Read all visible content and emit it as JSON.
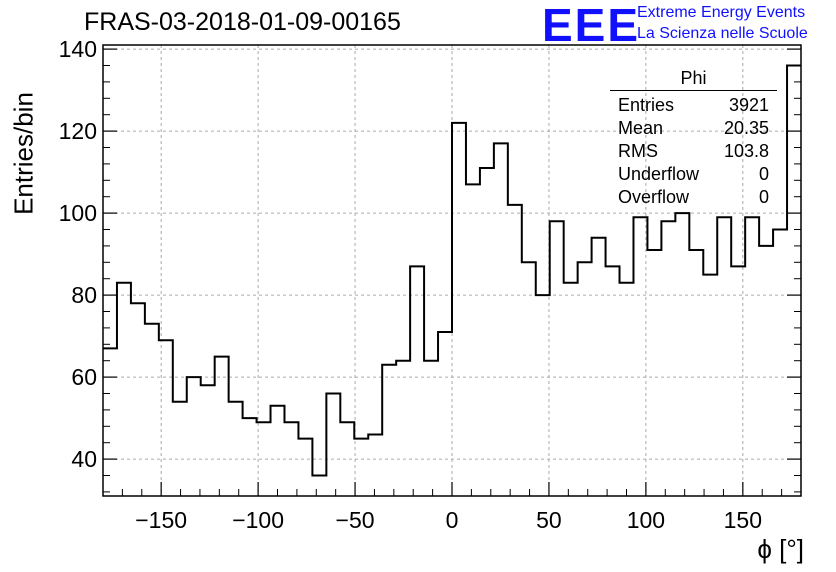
{
  "chart_data": {
    "type": "histogram",
    "title": "FRAS-03-2018-01-09-00165",
    "xlabel": "ϕ [°]",
    "ylabel": "Entries/bin",
    "xlim": [
      -180,
      180
    ],
    "ylim": [
      31,
      141
    ],
    "bin_width": 7.2,
    "x_ticks": [
      -150,
      -100,
      -50,
      0,
      50,
      100,
      150
    ],
    "x_tick_labels": [
      "−150",
      "−100",
      "−50",
      "0",
      "50",
      "100",
      "150"
    ],
    "y_ticks": [
      40,
      60,
      80,
      100,
      120,
      140
    ],
    "y_tick_labels": [
      "40",
      "60",
      "80",
      "100",
      "120",
      "140"
    ],
    "grid": true,
    "values": [
      67,
      83,
      78,
      73,
      69,
      54,
      60,
      58,
      65,
      54,
      50,
      49,
      53,
      49,
      45,
      36,
      56,
      49,
      45,
      46,
      63,
      64,
      87,
      64,
      71,
      122,
      107,
      111,
      117,
      102,
      88,
      80,
      98,
      83,
      88,
      94,
      87,
      83,
      99,
      91,
      98,
      100,
      91,
      85,
      99,
      87,
      99,
      92,
      96,
      136
    ]
  },
  "stats_box": {
    "name": "Phi",
    "rows": [
      {
        "label": "Entries",
        "value": "3921"
      },
      {
        "label": "Mean",
        "value": "20.35"
      },
      {
        "label": "RMS",
        "value": "103.8"
      },
      {
        "label": "Underflow",
        "value": "0"
      },
      {
        "label": "Overflow",
        "value": "0"
      }
    ]
  },
  "logo": {
    "mark": "EEE",
    "line1": "Extreme Energy Events",
    "line2": "La Scienza nelle Scuole",
    "color": "#1010ff"
  }
}
